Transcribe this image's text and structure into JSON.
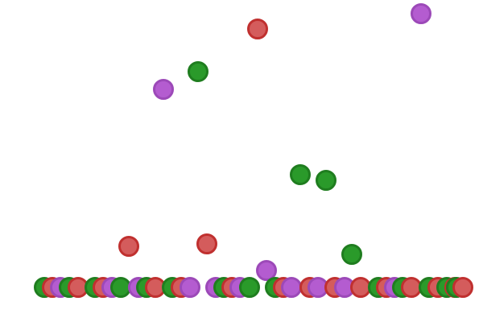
{
  "colors": {
    "red": {
      "fill": "#d45c5c",
      "stroke": "#c0302f"
    },
    "green": {
      "fill": "#2a9a2a",
      "stroke": "#1f7d1f"
    },
    "purple": {
      "fill": "#b45cd0",
      "stroke": "#9c49b8"
    }
  },
  "balls": [
    {
      "color": "purple",
      "state": "airborne"
    },
    {
      "color": "red",
      "state": "airborne"
    },
    {
      "color": "green",
      "state": "airborne"
    },
    {
      "color": "purple",
      "state": "airborne"
    },
    {
      "color": "green",
      "state": "airborne"
    },
    {
      "color": "green",
      "state": "airborne"
    },
    {
      "color": "red",
      "state": "airborne"
    },
    {
      "color": "red",
      "state": "airborne"
    },
    {
      "color": "green",
      "state": "airborne"
    },
    {
      "color": "purple",
      "state": "airborne"
    },
    {
      "color": "green",
      "state": "resting"
    },
    {
      "color": "red",
      "state": "resting"
    },
    {
      "color": "purple",
      "state": "resting"
    },
    {
      "color": "green",
      "state": "resting"
    },
    {
      "color": "red",
      "state": "resting"
    },
    {
      "color": "green",
      "state": "resting"
    },
    {
      "color": "red",
      "state": "resting"
    },
    {
      "color": "purple",
      "state": "resting"
    },
    {
      "color": "green",
      "state": "resting"
    },
    {
      "color": "purple",
      "state": "resting"
    },
    {
      "color": "green",
      "state": "resting"
    },
    {
      "color": "red",
      "state": "resting"
    },
    {
      "color": "green",
      "state": "resting"
    },
    {
      "color": "red",
      "state": "resting"
    },
    {
      "color": "purple",
      "state": "resting"
    },
    {
      "color": "purple",
      "state": "resting"
    },
    {
      "color": "green",
      "state": "resting"
    },
    {
      "color": "red",
      "state": "resting"
    },
    {
      "color": "purple",
      "state": "resting"
    },
    {
      "color": "green",
      "state": "resting"
    },
    {
      "color": "green",
      "state": "resting"
    },
    {
      "color": "red",
      "state": "resting"
    },
    {
      "color": "purple",
      "state": "resting"
    },
    {
      "color": "red",
      "state": "resting"
    },
    {
      "color": "purple",
      "state": "resting"
    },
    {
      "color": "red",
      "state": "resting"
    },
    {
      "color": "purple",
      "state": "resting"
    },
    {
      "color": "red",
      "state": "resting"
    },
    {
      "color": "green",
      "state": "resting"
    },
    {
      "color": "red",
      "state": "resting"
    },
    {
      "color": "purple",
      "state": "resting"
    },
    {
      "color": "green",
      "state": "resting"
    },
    {
      "color": "red",
      "state": "resting"
    },
    {
      "color": "green",
      "state": "resting"
    },
    {
      "color": "red",
      "state": "resting"
    },
    {
      "color": "green",
      "state": "resting"
    },
    {
      "color": "red",
      "state": "resting"
    },
    {
      "color": "green",
      "state": "resting"
    },
    {
      "color": "red",
      "state": "resting"
    }
  ]
}
